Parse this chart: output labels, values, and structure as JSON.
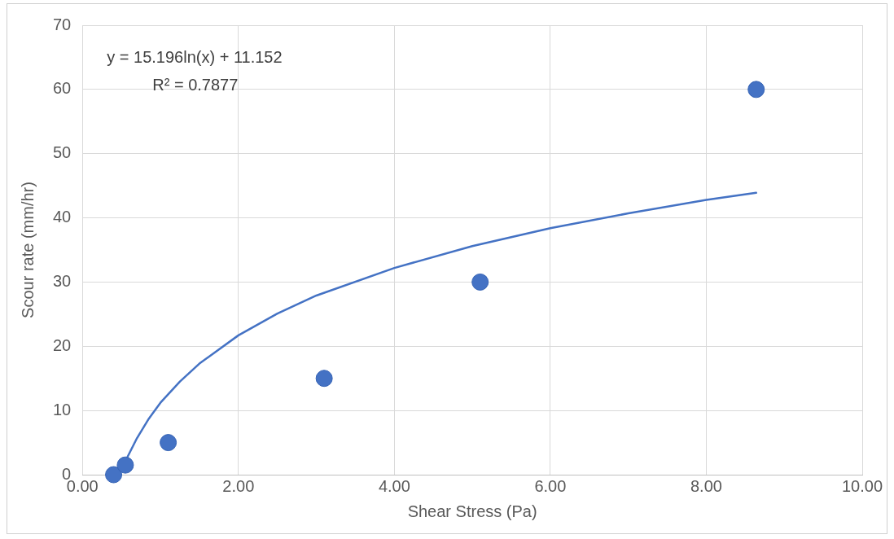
{
  "chart_data": {
    "type": "scatter",
    "xlabel": "Shear Stress (Pa)",
    "ylabel": "Scour rate (mm/hr)",
    "annotations": [
      "y = 15.196ln(x) + 11.152",
      "R² = 0.7877"
    ],
    "xlim": [
      0,
      10
    ],
    "ylim": [
      0,
      70
    ],
    "xticks": [
      {
        "value": 0,
        "label": "0.00"
      },
      {
        "value": 2,
        "label": "2.00"
      },
      {
        "value": 4,
        "label": "4.00"
      },
      {
        "value": 6,
        "label": "6.00"
      },
      {
        "value": 8,
        "label": "8.00"
      },
      {
        "value": 10,
        "label": "10.00"
      }
    ],
    "yticks": [
      0,
      10,
      20,
      30,
      40,
      50,
      60,
      70
    ],
    "grid": true,
    "legend": false,
    "marker": "circle",
    "series": [
      {
        "color": "#4472c4",
        "x": [
          0.4,
          0.55,
          1.1,
          3.1,
          5.1,
          8.64
        ],
        "values": [
          0,
          1.5,
          5,
          15,
          30,
          60
        ]
      },
      {
        "type": "line",
        "color": "#4472c4",
        "marker": "none",
        "line_style": "solid",
        "x": [
          0.55,
          0.7,
          0.85,
          1,
          1.25,
          1.5,
          2,
          2.5,
          3,
          4,
          5,
          6,
          7,
          8,
          8.64
        ],
        "values": [
          2.1,
          5.7,
          8.7,
          11.2,
          14.5,
          17.3,
          21.7,
          25.1,
          27.9,
          32.2,
          35.6,
          38.4,
          40.7,
          42.8,
          43.9
        ]
      }
    ]
  }
}
